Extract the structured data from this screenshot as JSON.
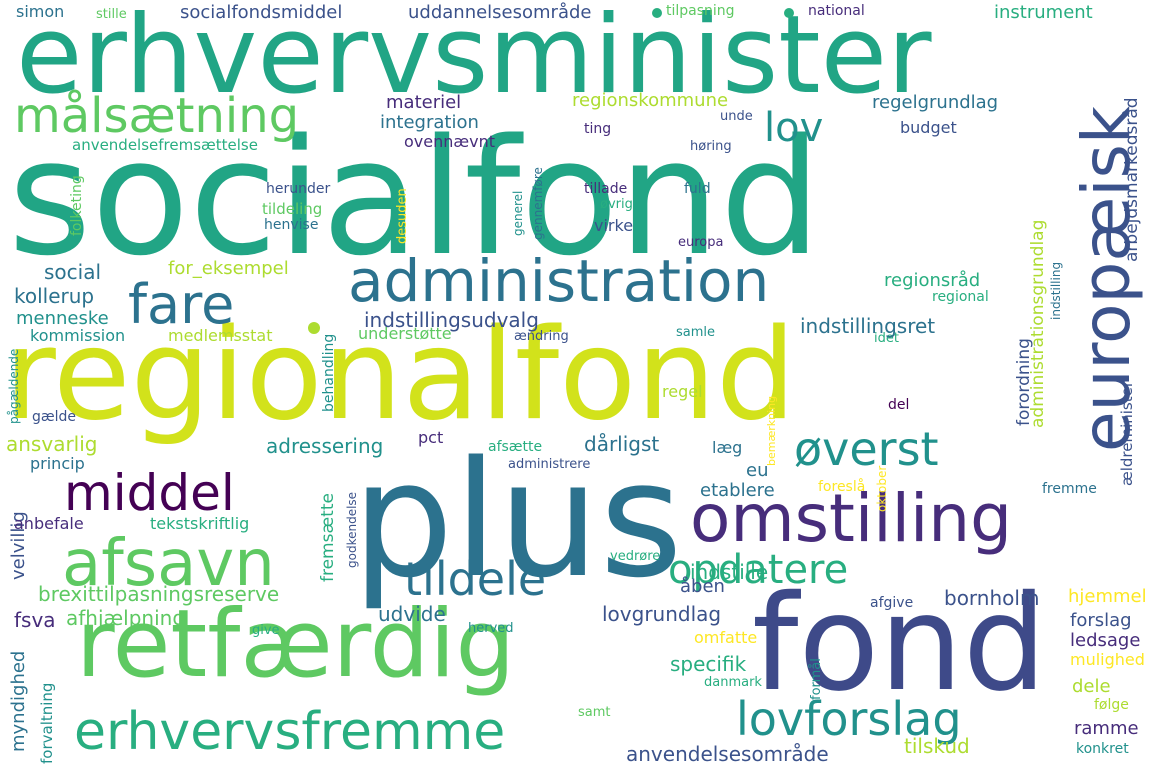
{
  "palette": [
    "#440154",
    "#472d7b",
    "#3b528b",
    "#2c728e",
    "#21918c",
    "#28ae80",
    "#5ec962",
    "#addc30",
    "#fde725"
  ],
  "words": [
    {
      "text": "socialfond",
      "color": "#21a585"
    },
    {
      "text": "erhvervsminister",
      "color": "#21a585"
    },
    {
      "text": "regionalfond",
      "color": "#d2e21b"
    },
    {
      "text": "plus",
      "color": "#2c728e"
    },
    {
      "text": "fond",
      "color": "#3e4a89"
    },
    {
      "text": "retfærdig",
      "color": "#5ec962"
    },
    {
      "text": "omstilling",
      "color": "#472d7b"
    },
    {
      "text": "administration",
      "color": "#2c728e"
    },
    {
      "text": "europæisk",
      "color": "#3b528b"
    },
    {
      "text": "afsavn",
      "color": "#5ec962"
    },
    {
      "text": "erhvervsfremme",
      "color": "#28ae80"
    },
    {
      "text": "middel",
      "color": "#440154"
    },
    {
      "text": "målsætning",
      "color": "#5ec962"
    },
    {
      "text": "lovforslag",
      "color": "#21918c"
    },
    {
      "text": "fare",
      "color": "#2c728e"
    },
    {
      "text": "tildele",
      "color": "#2c728e"
    },
    {
      "text": "øverst",
      "color": "#21918c"
    },
    {
      "text": "opdatere",
      "color": "#28ae80"
    },
    {
      "text": "lov",
      "color": "#21918c"
    },
    {
      "text": "specifik",
      "color": "#28ae80"
    },
    {
      "text": "udvide",
      "color": "#2c728e"
    },
    {
      "text": "lovgrundlag",
      "color": "#3b528b"
    },
    {
      "text": "anvendelsesområde",
      "color": "#3b528b"
    },
    {
      "text": "tilskud",
      "color": "#addc30"
    },
    {
      "text": "dele",
      "color": "#addc30"
    },
    {
      "text": "samt",
      "color": "#5ec962"
    },
    {
      "text": "danmark",
      "color": "#28ae80"
    },
    {
      "text": "formål",
      "color": "#21918c"
    },
    {
      "text": "omfatte",
      "color": "#fde725"
    },
    {
      "text": "afgive",
      "color": "#3b528b"
    },
    {
      "text": "hjemmel",
      "color": "#fde725"
    },
    {
      "text": "forslag",
      "color": "#3b528b"
    },
    {
      "text": "ledsage",
      "color": "#472d7b"
    },
    {
      "text": "mulighed",
      "color": "#fde725"
    },
    {
      "text": "følge",
      "color": "#addc30"
    },
    {
      "text": "ramme",
      "color": "#472d7b"
    },
    {
      "text": "konkret",
      "color": "#21918c"
    },
    {
      "text": "bornholm",
      "color": "#3b528b"
    },
    {
      "text": "indstille",
      "color": "#28ae80"
    },
    {
      "text": "åben",
      "color": "#3b528b"
    },
    {
      "text": "vedrøre",
      "color": "#28ae80"
    },
    {
      "text": "brexittilpasningsreserve",
      "color": "#5ec962"
    },
    {
      "text": "fsva",
      "color": "#472d7b"
    },
    {
      "text": "afhjælpning",
      "color": "#5ec962"
    },
    {
      "text": "give",
      "color": "#28ae80"
    },
    {
      "text": "herved",
      "color": "#21918c"
    },
    {
      "text": "myndighed",
      "color": "#2c728e"
    },
    {
      "text": "forvaltning",
      "color": "#21918c"
    },
    {
      "text": "fremsætte",
      "color": "#28ae80"
    },
    {
      "text": "godkendelse",
      "color": "#3b528b"
    },
    {
      "text": "velvillig",
      "color": "#3b528b"
    },
    {
      "text": "anbefale",
      "color": "#472d7b"
    },
    {
      "text": "tekstskriftlig",
      "color": "#28ae80"
    },
    {
      "text": "princip",
      "color": "#2c728e"
    },
    {
      "text": "ansvarlig",
      "color": "#addc30"
    },
    {
      "text": "adressering",
      "color": "#21918c"
    },
    {
      "text": "pct",
      "color": "#472d7b"
    },
    {
      "text": "afsætte",
      "color": "#28ae80"
    },
    {
      "text": "administrere",
      "color": "#3b528b"
    },
    {
      "text": "dårligst",
      "color": "#2c728e"
    },
    {
      "text": "læg",
      "color": "#2c728e"
    },
    {
      "text": "eu",
      "color": "#2c728e"
    },
    {
      "text": "etablere",
      "color": "#2c728e"
    },
    {
      "text": "bemærkning",
      "color": "#fde725"
    },
    {
      "text": "foreslå",
      "color": "#fde725"
    },
    {
      "text": "oktober",
      "color": "#fde725"
    },
    {
      "text": "fremme",
      "color": "#2c728e"
    },
    {
      "text": "gælde",
      "color": "#3b528b"
    },
    {
      "text": "pågældende",
      "color": "#21918c"
    },
    {
      "text": "behandling",
      "color": "#21918c"
    },
    {
      "text": "regel",
      "color": "#addc30"
    },
    {
      "text": "del",
      "color": "#440154"
    },
    {
      "text": "samle",
      "color": "#21918c"
    },
    {
      "text": "idet",
      "color": "#28ae80"
    },
    {
      "text": "ændring",
      "color": "#3b528b"
    },
    {
      "text": "understøtte",
      "color": "#5ec962"
    },
    {
      "text": "indstillingsudvalg",
      "color": "#3b528b"
    },
    {
      "text": "indstillingsret",
      "color": "#2c728e"
    },
    {
      "text": "kommission",
      "color": "#21918c"
    },
    {
      "text": "medlemsstat",
      "color": "#addc30"
    },
    {
      "text": "menneske",
      "color": "#21918c"
    },
    {
      "text": "kollerup",
      "color": "#2c728e"
    },
    {
      "text": "social",
      "color": "#2c728e"
    },
    {
      "text": "for_eksempel",
      "color": "#addc30"
    },
    {
      "text": "regionsråd",
      "color": "#28ae80"
    },
    {
      "text": "regional",
      "color": "#28ae80"
    },
    {
      "text": "forordning",
      "color": "#3b528b"
    },
    {
      "text": "administrationsgrundlag",
      "color": "#addc30"
    },
    {
      "text": "ældreminister",
      "color": "#3b528b"
    },
    {
      "text": "indstilling",
      "color": "#2c728e"
    },
    {
      "text": "arbejdsmarkedsråd",
      "color": "#3b528b"
    },
    {
      "text": "folketing",
      "color": "#5ec962"
    },
    {
      "text": "tildeling",
      "color": "#5ec962"
    },
    {
      "text": "henvise",
      "color": "#2c728e"
    },
    {
      "text": "herunder",
      "color": "#3b528b"
    },
    {
      "text": "desuden",
      "color": "#fde725"
    },
    {
      "text": "generel",
      "color": "#21918c"
    },
    {
      "text": "gennemføre",
      "color": "#2c728e"
    },
    {
      "text": "tillade",
      "color": "#472d7b"
    },
    {
      "text": "øvrig",
      "color": "#28ae80"
    },
    {
      "text": "virke",
      "color": "#3b528b"
    },
    {
      "text": "europa",
      "color": "#472d7b"
    },
    {
      "text": "fuld",
      "color": "#2c728e"
    },
    {
      "text": "høring",
      "color": "#3b528b"
    },
    {
      "text": "unde",
      "color": "#3b528b"
    },
    {
      "text": "ting",
      "color": "#472d7b"
    },
    {
      "text": "anvendelsefremsættelse",
      "color": "#28ae80"
    },
    {
      "text": "ovennævnt",
      "color": "#472d7b"
    },
    {
      "text": "integration",
      "color": "#2c728e"
    },
    {
      "text": "materiel",
      "color": "#472d7b"
    },
    {
      "text": "regionskommune",
      "color": "#addc30"
    },
    {
      "text": "regelgrundlag",
      "color": "#2c728e"
    },
    {
      "text": "budget",
      "color": "#3b528b"
    },
    {
      "text": "simon",
      "color": "#2c728e"
    },
    {
      "text": "stille",
      "color": "#5ec962"
    },
    {
      "text": "socialfondsmiddel",
      "color": "#3b528b"
    },
    {
      "text": "uddannelsesområde",
      "color": "#3b528b"
    },
    {
      "text": "tilpasning",
      "color": "#5ec962"
    },
    {
      "text": "national",
      "color": "#472d7b"
    },
    {
      "text": "instrument",
      "color": "#28ae80"
    }
  ]
}
